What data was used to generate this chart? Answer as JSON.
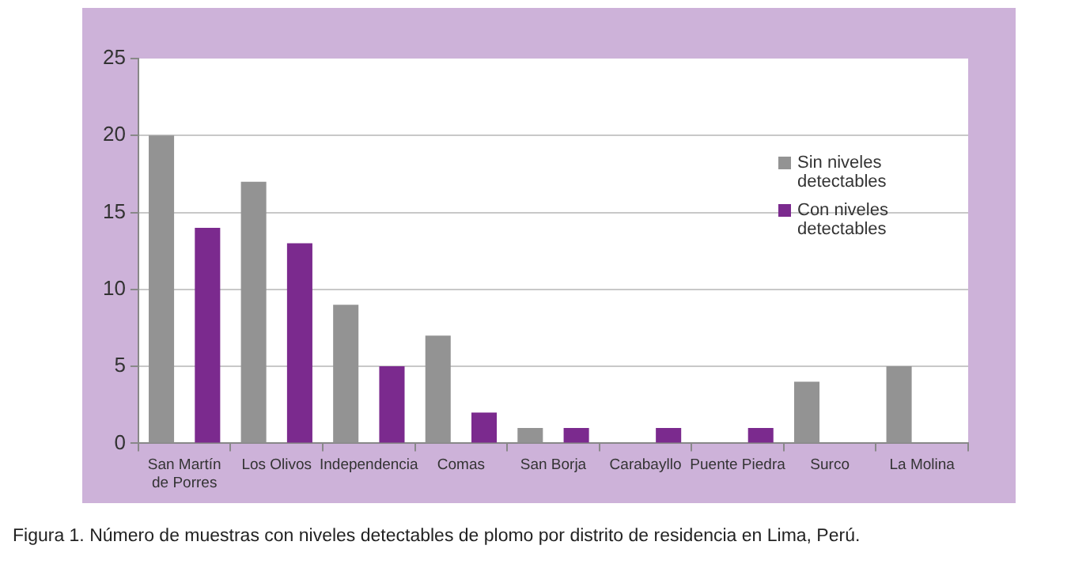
{
  "chart_data": {
    "type": "bar",
    "categories": [
      "San Martín de Porres",
      "Los Olivos",
      "Independencia",
      "Comas",
      "San Borja",
      "Carabayllo",
      "Puente Piedra",
      "Surco",
      "La Molina"
    ],
    "series": [
      {
        "name": "Sin niveles detectables",
        "color": "#939393",
        "values": [
          20,
          17,
          9,
          7,
          1,
          0,
          0,
          4,
          5
        ]
      },
      {
        "name": "Con niveles detectables",
        "color": "#7b2a8e",
        "values": [
          14,
          13,
          5,
          2,
          1,
          1,
          1,
          0,
          0
        ]
      }
    ],
    "ylim": [
      0,
      25
    ],
    "yticks": [
      0,
      5,
      10,
      15,
      20,
      25
    ],
    "grid": "y",
    "legend": "top right",
    "annotations": [
      "Figura 1. Número de muestras con niveles detectables de plomo por distrito de residencia en Lima, Perú."
    ]
  }
}
